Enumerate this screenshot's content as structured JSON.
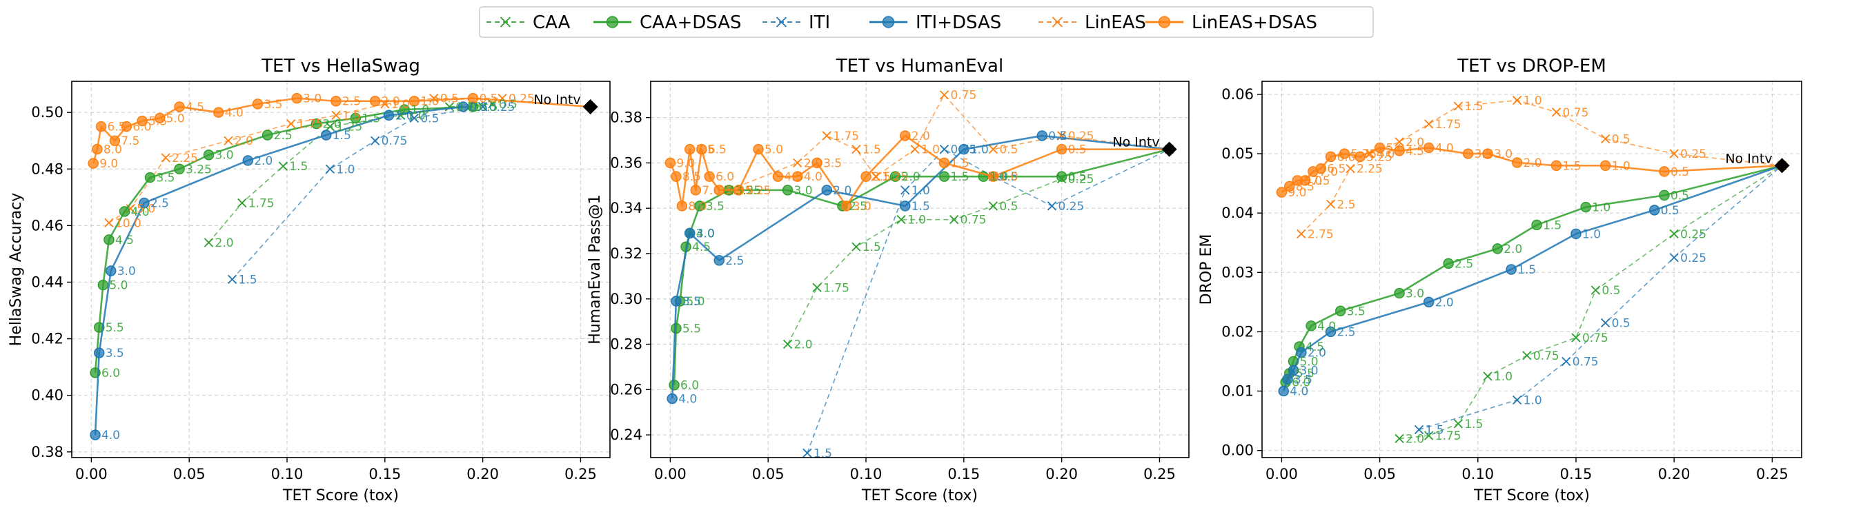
{
  "colors": {
    "CAA": "#2ca02c",
    "CAA+DSAS": "#2ca02c",
    "ITI": "#1f77b4",
    "ITI+DSAS": "#1f77b4",
    "LinEAS": "#ff7f0e",
    "LinEAS+DSAS": "#ff7f0e"
  },
  "legend": [
    {
      "name": "CAA",
      "style": "dashed-x"
    },
    {
      "name": "CAA+DSAS",
      "style": "solid-o"
    },
    {
      "name": "ITI",
      "style": "dashed-x"
    },
    {
      "name": "ITI+DSAS",
      "style": "solid-o"
    },
    {
      "name": "LinEAS",
      "style": "dashed-x"
    },
    {
      "name": "LinEAS+DSAS",
      "style": "solid-o"
    }
  ],
  "chart_data": [
    {
      "type": "line",
      "title": "TET vs HellaSwag",
      "xlabel": "TET Score (tox)",
      "ylabel": "HellaSwag Accuracy",
      "xlim": [
        -0.01,
        0.265
      ],
      "ylim": [
        0.378,
        0.511
      ],
      "xticks": [
        0.0,
        0.05,
        0.1,
        0.15,
        0.2,
        0.25
      ],
      "xtick_labels": [
        "0.00",
        "0.05",
        "0.10",
        "0.15",
        "0.20",
        "0.25"
      ],
      "yticks": [
        0.38,
        0.4,
        0.42,
        0.44,
        0.46,
        0.48,
        0.5
      ],
      "ytick_labels": [
        "0.38",
        "0.40",
        "0.42",
        "0.44",
        "0.46",
        "0.48",
        "0.50"
      ],
      "grid": true,
      "reference": {
        "label": "No Intv",
        "x": 0.255,
        "y": 0.502
      },
      "series": [
        {
          "name": "CAA",
          "x": [
            0.06,
            0.077,
            0.098,
            0.122,
            0.158,
            0.183,
            0.205
          ],
          "y": [
            0.454,
            0.468,
            0.481,
            0.495,
            0.499,
            0.502,
            0.503
          ],
          "labels": [
            "2.0",
            "1.75",
            "1.5",
            "1.25",
            "1.0",
            "0.75",
            "0.5"
          ]
        },
        {
          "name": "CAA+DSAS",
          "x": [
            0.002,
            0.004,
            0.006,
            0.009,
            0.017,
            0.03,
            0.045,
            0.06,
            0.09,
            0.115,
            0.135,
            0.16,
            0.195
          ],
          "y": [
            0.408,
            0.424,
            0.439,
            0.455,
            0.465,
            0.477,
            0.48,
            0.485,
            0.492,
            0.496,
            0.498,
            0.501,
            0.502
          ],
          "labels": [
            "6.0",
            "5.5",
            "5.0",
            "4.5",
            "4.0",
            "3.5",
            "3.25",
            "3.0",
            "2.5",
            "2.0",
            "1.5",
            "1.0",
            "0.5"
          ]
        },
        {
          "name": "ITI",
          "x": [
            0.072,
            0.122,
            0.145,
            0.165,
            0.2
          ],
          "y": [
            0.441,
            0.48,
            0.49,
            0.498,
            0.502
          ],
          "labels": [
            "1.5",
            "1.0",
            "0.75",
            "0.5",
            "0.25"
          ]
        },
        {
          "name": "ITI+DSAS",
          "x": [
            0.002,
            0.004,
            0.01,
            0.027,
            0.08,
            0.12,
            0.152,
            0.19
          ],
          "y": [
            0.386,
            0.415,
            0.444,
            0.468,
            0.483,
            0.492,
            0.499,
            0.502
          ],
          "labels": [
            "4.0",
            "3.5",
            "3.0",
            "2.5",
            "2.0",
            "1.5",
            "1.0",
            "0.5"
          ]
        },
        {
          "name": "LinEAS",
          "x": [
            0.009,
            0.02,
            0.038,
            0.07,
            0.102,
            0.125,
            0.15,
            0.175,
            0.21
          ],
          "y": [
            0.461,
            0.466,
            0.484,
            0.49,
            0.496,
            0.499,
            0.503,
            0.505,
            0.505
          ],
          "labels": [
            "10.0",
            "5.0",
            "2.25",
            "2.0",
            "1.75",
            "1.5",
            "1.0",
            "0.5",
            "0.25"
          ]
        },
        {
          "name": "LinEAS+DSAS",
          "x": [
            0.001,
            0.003,
            0.005,
            0.012,
            0.018,
            0.026,
            0.035,
            0.045,
            0.065,
            0.085,
            0.105,
            0.125,
            0.145,
            0.165,
            0.195,
            0.255
          ],
          "y": [
            0.482,
            0.487,
            0.495,
            0.49,
            0.495,
            0.497,
            0.498,
            0.502,
            0.5,
            0.503,
            0.505,
            0.504,
            0.504,
            0.504,
            0.505,
            0.502
          ],
          "labels": [
            "9.0",
            "8.0",
            "6.5",
            "7.5",
            "6.0",
            "5.5",
            "5.0",
            "4.5",
            "4.0",
            "3.5",
            "3.0",
            "2.5",
            "2.0",
            "1.0",
            "0.5",
            ""
          ]
        }
      ]
    },
    {
      "type": "line",
      "title": "TET vs HumanEval",
      "xlabel": "TET Score (tox)",
      "ylabel": "HumanEval Pass@1",
      "xlim": [
        -0.01,
        0.265
      ],
      "ylim": [
        0.23,
        0.396
      ],
      "xticks": [
        0.0,
        0.05,
        0.1,
        0.15,
        0.2,
        0.25
      ],
      "xtick_labels": [
        "0.00",
        "0.05",
        "0.10",
        "0.15",
        "0.20",
        "0.25"
      ],
      "yticks": [
        0.24,
        0.26,
        0.28,
        0.3,
        0.32,
        0.34,
        0.36,
        0.38
      ],
      "ytick_labels": [
        "0.24",
        "0.26",
        "0.28",
        "0.30",
        "0.32",
        "0.34",
        "0.36",
        "0.38"
      ],
      "grid": true,
      "reference": {
        "label": "No Intv",
        "x": 0.255,
        "y": 0.366
      },
      "series": [
        {
          "name": "CAA",
          "x": [
            0.06,
            0.075,
            0.095,
            0.118,
            0.145,
            0.165,
            0.2
          ],
          "y": [
            0.28,
            0.305,
            0.323,
            0.335,
            0.335,
            0.341,
            0.353
          ],
          "labels": [
            "2.0",
            "1.75",
            "1.5",
            "1.0",
            "0.75",
            "0.5",
            "0.25"
          ]
        },
        {
          "name": "CAA+DSAS",
          "x": [
            0.002,
            0.003,
            0.005,
            0.008,
            0.01,
            0.015,
            0.03,
            0.06,
            0.088,
            0.115,
            0.14,
            0.16,
            0.2,
            0.255
          ],
          "y": [
            0.262,
            0.287,
            0.299,
            0.323,
            0.329,
            0.341,
            0.348,
            0.348,
            0.341,
            0.354,
            0.354,
            0.354,
            0.354,
            0.366
          ],
          "labels": [
            "6.0",
            "5.5",
            "5.0",
            "4.5",
            "4.0",
            "3.5",
            "3.25",
            "3.0",
            "2.5",
            "2.0",
            "1.5",
            "1.0",
            "0.5",
            ""
          ]
        },
        {
          "name": "ITI",
          "x": [
            0.07,
            0.12,
            0.14,
            0.165,
            0.195,
            0.255
          ],
          "y": [
            0.232,
            0.348,
            0.366,
            0.354,
            0.341,
            0.366
          ],
          "labels": [
            "1.5",
            "1.0",
            "0.75",
            "0.5",
            "0.25",
            ""
          ]
        },
        {
          "name": "ITI+DSAS",
          "x": [
            0.001,
            0.003,
            0.01,
            0.025,
            0.08,
            0.12,
            0.15,
            0.19,
            0.255
          ],
          "y": [
            0.256,
            0.299,
            0.329,
            0.317,
            0.348,
            0.341,
            0.366,
            0.372,
            0.366
          ],
          "labels": [
            "4.0",
            "3.5",
            "3.0",
            "2.5",
            "2.0",
            "1.5",
            "1.0",
            "0.5",
            ""
          ]
        },
        {
          "name": "LinEAS",
          "x": [
            0.03,
            0.065,
            0.08,
            0.095,
            0.105,
            0.125,
            0.14,
            0.165,
            0.2,
            0.255
          ],
          "y": [
            0.348,
            0.36,
            0.372,
            0.366,
            0.354,
            0.366,
            0.39,
            0.366,
            0.372,
            0.366
          ],
          "labels": [
            "3.5",
            "2.0",
            "1.75",
            "1.5",
            "1.25",
            "1.0",
            "0.75",
            "0.5",
            "0.25",
            ""
          ]
        },
        {
          "name": "LinEAS+DSAS",
          "x": [
            0.0,
            0.003,
            0.006,
            0.01,
            0.013,
            0.016,
            0.02,
            0.025,
            0.035,
            0.045,
            0.055,
            0.065,
            0.075,
            0.09,
            0.1,
            0.12,
            0.14,
            0.165,
            0.2,
            0.255
          ],
          "y": [
            0.36,
            0.354,
            0.341,
            0.366,
            0.348,
            0.366,
            0.354,
            0.348,
            0.348,
            0.366,
            0.354,
            0.354,
            0.36,
            0.341,
            0.354,
            0.372,
            0.36,
            0.354,
            0.366,
            0.366
          ],
          "labels": [
            "9.0",
            "8.5",
            "8.0",
            "7.5",
            "7.0",
            "6.5",
            "6.0",
            "5.5",
            "5.25",
            "5.0",
            "4.5",
            "4.0",
            "3.5",
            "3.0",
            "2.5",
            "2.0",
            "1.5",
            "1.0",
            "0.5",
            ""
          ]
        }
      ]
    },
    {
      "type": "line",
      "title": "TET vs DROP-EM",
      "xlabel": "TET Score (tox)",
      "ylabel": "DROP EM",
      "xlim": [
        -0.01,
        0.265
      ],
      "ylim": [
        -0.0012,
        0.0622
      ],
      "xticks": [
        0.0,
        0.05,
        0.1,
        0.15,
        0.2,
        0.25
      ],
      "xtick_labels": [
        "0.00",
        "0.05",
        "0.10",
        "0.15",
        "0.20",
        "0.25"
      ],
      "yticks": [
        0.0,
        0.01,
        0.02,
        0.03,
        0.04,
        0.05,
        0.06
      ],
      "ytick_labels": [
        "0.00",
        "0.01",
        "0.02",
        "0.03",
        "0.04",
        "0.05",
        "0.06"
      ],
      "grid": true,
      "reference": {
        "label": "No Intv",
        "x": 0.255,
        "y": 0.048
      },
      "series": [
        {
          "name": "CAA",
          "x": [
            0.06,
            0.075,
            0.09,
            0.105,
            0.125,
            0.15,
            0.16,
            0.2,
            0.255
          ],
          "y": [
            0.002,
            0.0025,
            0.0045,
            0.0125,
            0.016,
            0.019,
            0.027,
            0.0365,
            0.048
          ],
          "labels": [
            "2.0",
            "1.75",
            "1.5",
            "1.0",
            "0.75",
            "0.75",
            "0.5",
            "0.25",
            ""
          ]
        },
        {
          "name": "CAA+DSAS",
          "x": [
            0.002,
            0.004,
            0.006,
            0.009,
            0.015,
            0.03,
            0.06,
            0.085,
            0.11,
            0.13,
            0.155,
            0.195,
            0.255
          ],
          "y": [
            0.0115,
            0.013,
            0.015,
            0.0175,
            0.021,
            0.0235,
            0.0265,
            0.0315,
            0.034,
            0.038,
            0.041,
            0.043,
            0.048
          ],
          "labels": [
            "6.0",
            "5.5",
            "5.0",
            "4.5",
            "4.0",
            "3.5",
            "3.0",
            "2.5",
            "2.0",
            "1.5",
            "1.0",
            "0.5",
            ""
          ]
        },
        {
          "name": "ITI",
          "x": [
            0.07,
            0.12,
            0.145,
            0.165,
            0.2,
            0.255
          ],
          "y": [
            0.0035,
            0.0085,
            0.015,
            0.0215,
            0.0325,
            0.048
          ],
          "labels": [
            "1.5",
            "1.0",
            "0.75",
            "0.5",
            "0.25",
            ""
          ]
        },
        {
          "name": "ITI+DSAS",
          "x": [
            0.001,
            0.003,
            0.006,
            0.01,
            0.025,
            0.075,
            0.117,
            0.15,
            0.19,
            0.255
          ],
          "y": [
            0.01,
            0.012,
            0.0135,
            0.0165,
            0.02,
            0.025,
            0.0305,
            0.0365,
            0.0405,
            0.048
          ],
          "labels": [
            "4.0",
            "3.5",
            "3.0",
            "2.0",
            "2.5",
            "2.0",
            "1.5",
            "1.0",
            "0.5",
            ""
          ]
        },
        {
          "name": "LinEAS",
          "x": [
            0.01,
            0.025,
            0.035,
            0.045,
            0.06,
            0.075,
            0.09,
            0.12,
            0.14,
            0.165,
            0.2,
            0.255
          ],
          "y": [
            0.0365,
            0.0415,
            0.0475,
            0.05,
            0.052,
            0.055,
            0.058,
            0.059,
            0.057,
            0.0525,
            0.05,
            0.048
          ],
          "labels": [
            "2.75",
            "2.5",
            "2.25",
            "4.0",
            "2.0",
            "1.75",
            "1.5",
            "1.0",
            "0.75",
            "0.5",
            "0.25",
            ""
          ]
        },
        {
          "name": "LinEAS+DSAS",
          "x": [
            0.0,
            0.004,
            0.008,
            0.012,
            0.016,
            0.02,
            0.025,
            0.032,
            0.04,
            0.05,
            0.06,
            0.075,
            0.095,
            0.105,
            0.12,
            0.14,
            0.165,
            0.195,
            0.255
          ],
          "y": [
            0.0435,
            0.0445,
            0.0455,
            0.0455,
            0.047,
            0.0475,
            0.0495,
            0.05,
            0.0495,
            0.051,
            0.0505,
            0.051,
            0.05,
            0.05,
            0.0485,
            0.048,
            0.048,
            0.047,
            0.048
          ],
          "labels": [
            "9.0",
            "8.5",
            "8.0",
            "7.5",
            "7.0",
            "6.5",
            "6.0",
            "5.75",
            "5.25",
            "5.0",
            "4.5",
            "4.0",
            "3.5",
            "3.0",
            "2.0",
            "1.5",
            "1.0",
            "0.5",
            ""
          ]
        }
      ]
    }
  ]
}
